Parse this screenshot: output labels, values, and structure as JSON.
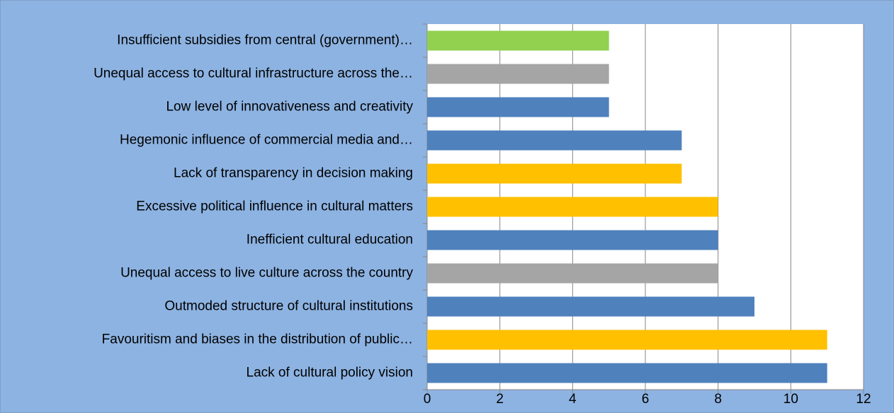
{
  "chart_data": {
    "type": "barh",
    "categories": [
      "Insufficient subsidies from central (government)…",
      "Unequal access to cultural infrastructure across the…",
      "Low level of innovativeness and creativity",
      "Hegemonic influence of commercial media and…",
      "Lack of transparency in decision making",
      "Excessive political influence in cultural matters",
      "Inefficient cultural education",
      "Unequal access to live culture across the country",
      "Outmoded structure of cultural institutions",
      "Favouritism and biases in the distribution of public…",
      "Lack of cultural policy vision"
    ],
    "values": [
      5,
      5,
      5,
      7,
      7,
      8,
      8,
      8,
      9,
      11,
      11
    ],
    "colors": [
      "#92d050",
      "#a5a5a5",
      "#4f81bd",
      "#4f81bd",
      "#ffc000",
      "#ffc000",
      "#4f81bd",
      "#a5a5a5",
      "#4f81bd",
      "#ffc000",
      "#4f81bd"
    ],
    "xlim": [
      0,
      12
    ],
    "xticks": [
      0,
      2,
      4,
      6,
      8,
      10,
      12
    ],
    "grid": true
  }
}
